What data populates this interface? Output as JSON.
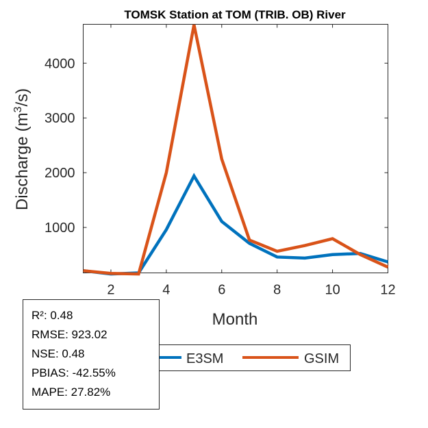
{
  "chart_data": {
    "type": "line",
    "title": "TOMSK  Station at  TOM (TRIB. OB)  River",
    "xlabel": "Month",
    "ylabel": "Discharge (m3/s)",
    "ylabel_parts": {
      "pre": "Discharge (m",
      "sup": "3",
      "post": "/s)"
    },
    "xlim": [
      1,
      12
    ],
    "ylim": [
      170,
      4710
    ],
    "xticks": [
      2,
      4,
      6,
      8,
      10,
      12
    ],
    "yticks": [
      1000,
      2000,
      3000,
      4000
    ],
    "x": [
      1,
      2,
      3,
      4,
      5,
      6,
      7,
      8,
      9,
      10,
      11,
      12
    ],
    "series": [
      {
        "name": "E3SM",
        "color": "#0072BD",
        "values": [
          210,
          150,
          170,
          960,
          1940,
          1110,
          710,
          460,
          440,
          505,
          525,
          370
        ]
      },
      {
        "name": "GSIM",
        "color": "#D95319",
        "values": [
          210,
          160,
          150,
          2000,
          4700,
          2250,
          770,
          565,
          670,
          795,
          505,
          275
        ]
      }
    ],
    "legend": "bottom",
    "grid": false
  },
  "stats": [
    "R²: 0.48",
    "RMSE: 923.02",
    "NSE: 0.48",
    "PBIAS: -42.55%",
    "MAPE: 27.82%"
  ]
}
